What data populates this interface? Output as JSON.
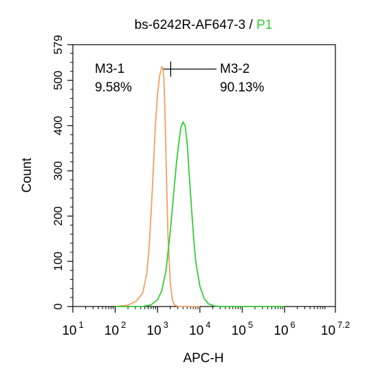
{
  "chart_data": {
    "type": "line",
    "title": {
      "main": "bs-6242R-AF647-3",
      "separator": " / ",
      "gate": "P1",
      "gate_color": "#33cc33"
    },
    "xlabel": "APC-H",
    "ylabel": "Count",
    "x_scale": "log10",
    "xlim": [
      10,
      15848932
    ],
    "ylim": [
      0,
      579
    ],
    "x_ticks": [
      {
        "base": "10",
        "exp": "1",
        "value": 10
      },
      {
        "base": "10",
        "exp": "2",
        "value": 100
      },
      {
        "base": "10",
        "exp": "3",
        "value": 1000
      },
      {
        "base": "10",
        "exp": "4",
        "value": 10000
      },
      {
        "base": "10",
        "exp": "5",
        "value": 100000
      },
      {
        "base": "10",
        "exp": "6",
        "value": 1000000
      },
      {
        "base": "10",
        "exp": "7.2",
        "value": 15848932
      }
    ],
    "y_ticks": [
      "0",
      "100",
      "200",
      "300",
      "400",
      "500",
      "579"
    ],
    "y_tick_values": [
      0,
      100,
      200,
      300,
      400,
      500,
      579
    ],
    "series": [
      {
        "color": "#f0a060",
        "x": [
          100,
          200,
          316,
          447,
          562,
          631,
          708,
          794,
          891,
          1000,
          1122,
          1259,
          1334,
          1413,
          1496,
          1585,
          1679,
          1778,
          1995,
          2239,
          2512,
          3162,
          10000
        ],
        "y": [
          0,
          3,
          12,
          30,
          75,
          130,
          210,
          305,
          400,
          470,
          510,
          530,
          528,
          505,
          430,
          330,
          230,
          150,
          55,
          15,
          3,
          0,
          0
        ]
      },
      {
        "color": "#33cc33",
        "x": [
          100,
          447,
          708,
          1000,
          1259,
          1585,
          1995,
          2512,
          2818,
          3162,
          3548,
          3981,
          4467,
          5012,
          5623,
          6310,
          7079,
          7943,
          10000,
          12589,
          15849,
          22387,
          31623,
          1000000
        ],
        "y": [
          0,
          0,
          4,
          15,
          35,
          80,
          165,
          270,
          320,
          360,
          395,
          408,
          400,
          360,
          290,
          220,
          155,
          100,
          45,
          18,
          6,
          1,
          0,
          0
        ]
      }
    ],
    "gates": [
      {
        "name": "M3-1",
        "percent": "9.58%",
        "x_start": 100,
        "x_end": 2050,
        "y": 525
      },
      {
        "name": "M3-2",
        "percent": "90.13%",
        "x_start": 2050,
        "x_end": 15848932,
        "y": 525
      }
    ],
    "grid": false,
    "legend": "none"
  }
}
